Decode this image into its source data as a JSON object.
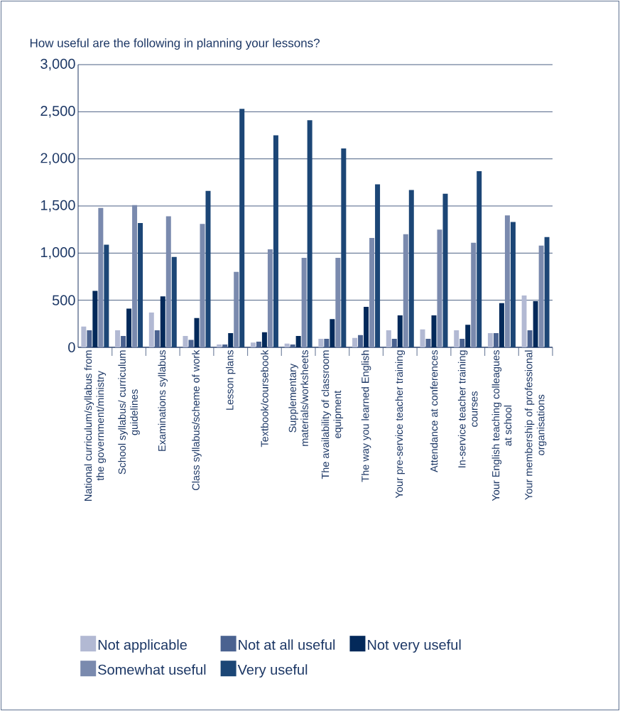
{
  "chart_data": {
    "type": "bar",
    "title": "How useful are the following in planning your lessons?",
    "categories": [
      "National curriculum/syllabus from the government/ministry",
      "School syllabus/ curriculum guidelines",
      "Examinations syllabus",
      "Class syllabus/scheme of work",
      "Lesson plans",
      "Textbook/coursebook",
      "Supplementary materials/worksheets",
      "The availability of classroom equipment",
      "The way you learned English",
      "Your pre-service teacher training",
      "Attendance at conferences",
      "In-service teacher training courses",
      "Your English teaching colleagues at school",
      "Your membership of professional organisations"
    ],
    "series": [
      {
        "name": "Not applicable",
        "color": "#b2b9d3",
        "values": [
          220,
          180,
          370,
          120,
          30,
          50,
          40,
          90,
          100,
          180,
          190,
          180,
          150,
          550
        ]
      },
      {
        "name": "Not at all useful",
        "color": "#4a6290",
        "values": [
          180,
          120,
          180,
          80,
          30,
          60,
          30,
          90,
          130,
          90,
          90,
          90,
          150,
          180
        ]
      },
      {
        "name": "Not very useful",
        "color": "#03295a",
        "values": [
          600,
          410,
          540,
          310,
          150,
          160,
          120,
          300,
          430,
          340,
          340,
          240,
          470,
          490
        ]
      },
      {
        "name": "Somewhat useful",
        "color": "#7a8aae",
        "values": [
          1480,
          1510,
          1390,
          1310,
          800,
          1040,
          950,
          950,
          1160,
          1200,
          1250,
          1110,
          1400,
          1080
        ]
      },
      {
        "name": "Very useful",
        "color": "#1c4676",
        "values": [
          1090,
          1320,
          960,
          1660,
          2530,
          2250,
          2410,
          2110,
          1730,
          1670,
          1630,
          1870,
          1330,
          1170
        ]
      }
    ],
    "ylim": [
      0,
      3000
    ],
    "yticks": [
      0,
      {
        "value": 500,
        "label": "500"
      },
      {
        "value": 1000,
        "label": "1,000"
      },
      {
        "value": 1500,
        "label": "1,500"
      },
      {
        "value": 2000,
        "label": "2,000"
      },
      {
        "value": 2500,
        "label": "2,500"
      },
      {
        "value": 3000,
        "label": "3,000"
      }
    ],
    "grid": "y",
    "legend": "bottom"
  }
}
